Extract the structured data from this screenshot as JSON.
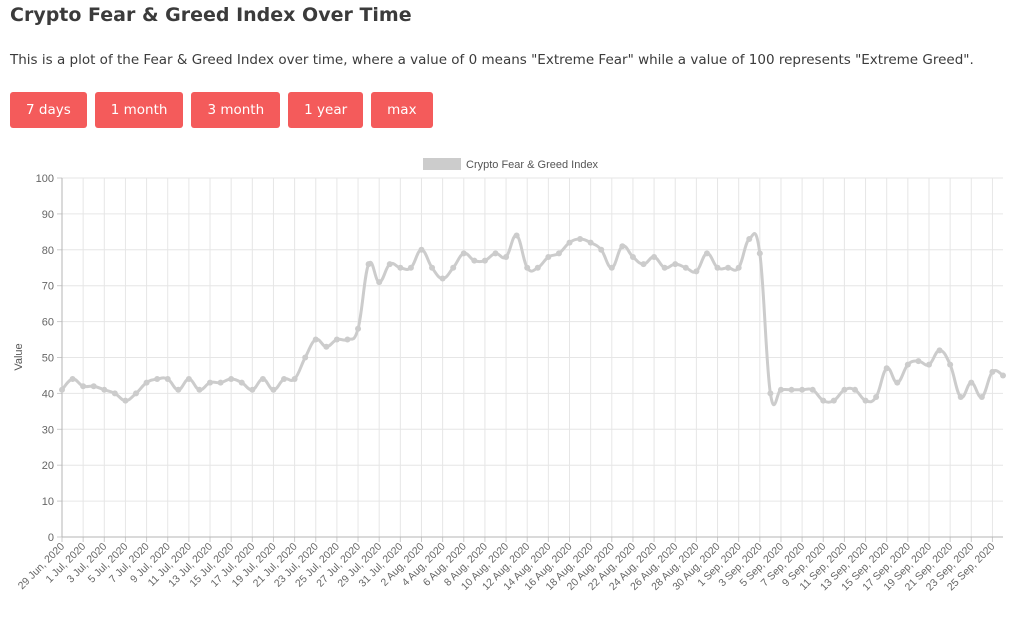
{
  "page": {
    "title": "Crypto Fear & Greed Index Over Time",
    "description": "This is a plot of the Fear & Greed Index over time, where a value of 0 means \"Extreme Fear\" while a value of 100 represents \"Extreme Greed\"."
  },
  "range_buttons": [
    "7 days",
    "1 month",
    "3 month",
    "1 year",
    "max"
  ],
  "colors": {
    "button_bg": "#f45b5b",
    "series": "#cccccc",
    "grid": "#e6e6e6"
  },
  "chart_data": {
    "type": "line",
    "title": "",
    "xlabel": "",
    "ylabel": "Value",
    "ylim": [
      0,
      100
    ],
    "yticks": [
      0,
      10,
      20,
      30,
      40,
      50,
      60,
      70,
      80,
      90,
      100
    ],
    "grid": true,
    "legend_position": "top-center",
    "x": [
      "29 Jun, 2020",
      "30 Jun, 2020",
      "1 Jul, 2020",
      "2 Jul, 2020",
      "3 Jul, 2020",
      "4 Jul, 2020",
      "5 Jul, 2020",
      "6 Jul, 2020",
      "7 Jul, 2020",
      "8 Jul, 2020",
      "9 Jul, 2020",
      "10 Jul, 2020",
      "11 Jul, 2020",
      "12 Jul, 2020",
      "13 Jul, 2020",
      "14 Jul, 2020",
      "15 Jul, 2020",
      "16 Jul, 2020",
      "17 Jul, 2020",
      "18 Jul, 2020",
      "19 Jul, 2020",
      "20 Jul, 2020",
      "21 Jul, 2020",
      "22 Jul, 2020",
      "23 Jul, 2020",
      "24 Jul, 2020",
      "25 Jul, 2020",
      "26 Jul, 2020",
      "27 Jul, 2020",
      "28 Jul, 2020",
      "29 Jul, 2020",
      "30 Jul, 2020",
      "31 Jul, 2020",
      "1 Aug, 2020",
      "2 Aug, 2020",
      "3 Aug, 2020",
      "4 Aug, 2020",
      "5 Aug, 2020",
      "6 Aug, 2020",
      "7 Aug, 2020",
      "8 Aug, 2020",
      "9 Aug, 2020",
      "10 Aug, 2020",
      "11 Aug, 2020",
      "12 Aug, 2020",
      "13 Aug, 2020",
      "14 Aug, 2020",
      "15 Aug, 2020",
      "16 Aug, 2020",
      "17 Aug, 2020",
      "18 Aug, 2020",
      "19 Aug, 2020",
      "20 Aug, 2020",
      "21 Aug, 2020",
      "22 Aug, 2020",
      "23 Aug, 2020",
      "24 Aug, 2020",
      "25 Aug, 2020",
      "26 Aug, 2020",
      "27 Aug, 2020",
      "28 Aug, 2020",
      "29 Aug, 2020",
      "30 Aug, 2020",
      "31 Aug, 2020",
      "1 Sep, 2020",
      "2 Sep, 2020",
      "3 Sep, 2020",
      "4 Sep, 2020",
      "5 Sep, 2020",
      "6 Sep, 2020",
      "7 Sep, 2020",
      "8 Sep, 2020",
      "9 Sep, 2020",
      "10 Sep, 2020",
      "11 Sep, 2020",
      "12 Sep, 2020",
      "13 Sep, 2020",
      "14 Sep, 2020",
      "15 Sep, 2020",
      "16 Sep, 2020",
      "17 Sep, 2020",
      "18 Sep, 2020",
      "19 Sep, 2020",
      "20 Sep, 2020",
      "21 Sep, 2020",
      "22 Sep, 2020",
      "23 Sep, 2020",
      "24 Sep, 2020",
      "25 Sep, 2020",
      "26 Sep, 2020"
    ],
    "xtick_labels": [
      "29 Jun, 2020",
      "1 Jul, 2020",
      "3 Jul, 2020",
      "5 Jul, 2020",
      "7 Jul, 2020",
      "9 Jul, 2020",
      "11 Jul, 2020",
      "13 Jul, 2020",
      "15 Jul, 2020",
      "17 Jul, 2020",
      "19 Jul, 2020",
      "21 Jul, 2020",
      "23 Jul, 2020",
      "25 Jul, 2020",
      "27 Jul, 2020",
      "29 Jul, 2020",
      "31 Jul, 2020",
      "2 Aug, 2020",
      "4 Aug, 2020",
      "6 Aug, 2020",
      "8 Aug, 2020",
      "10 Aug, 2020",
      "12 Aug, 2020",
      "14 Aug, 2020",
      "16 Aug, 2020",
      "18 Aug, 2020",
      "20 Aug, 2020",
      "22 Aug, 2020",
      "24 Aug, 2020",
      "26 Aug, 2020",
      "28 Aug, 2020",
      "30 Aug, 2020",
      "1 Sep, 2020",
      "3 Sep, 2020",
      "5 Sep, 2020",
      "7 Sep, 2020",
      "9 Sep, 2020",
      "11 Sep, 2020",
      "13 Sep, 2020",
      "15 Sep, 2020",
      "17 Sep, 2020",
      "19 Sep, 2020",
      "21 Sep, 2020",
      "23 Sep, 2020",
      "25 Sep, 2020"
    ],
    "series": [
      {
        "name": "Crypto Fear & Greed Index",
        "color": "#cccccc",
        "values": [
          41,
          44,
          42,
          42,
          41,
          40,
          38,
          40,
          43,
          44,
          44,
          41,
          44,
          41,
          43,
          43,
          44,
          43,
          41,
          44,
          41,
          44,
          44,
          50,
          55,
          53,
          55,
          55,
          58,
          76,
          71,
          76,
          75,
          75,
          80,
          75,
          72,
          75,
          79,
          77,
          77,
          79,
          78,
          84,
          75,
          75,
          78,
          79,
          82,
          83,
          82,
          80,
          75,
          81,
          78,
          76,
          78,
          75,
          76,
          75,
          74,
          79,
          75,
          75,
          75,
          83,
          79,
          40,
          41,
          41,
          41,
          41,
          38,
          38,
          41,
          41,
          38,
          39,
          47,
          43,
          48,
          49,
          48,
          52,
          48,
          39,
          43,
          39,
          46,
          45
        ]
      }
    ]
  }
}
